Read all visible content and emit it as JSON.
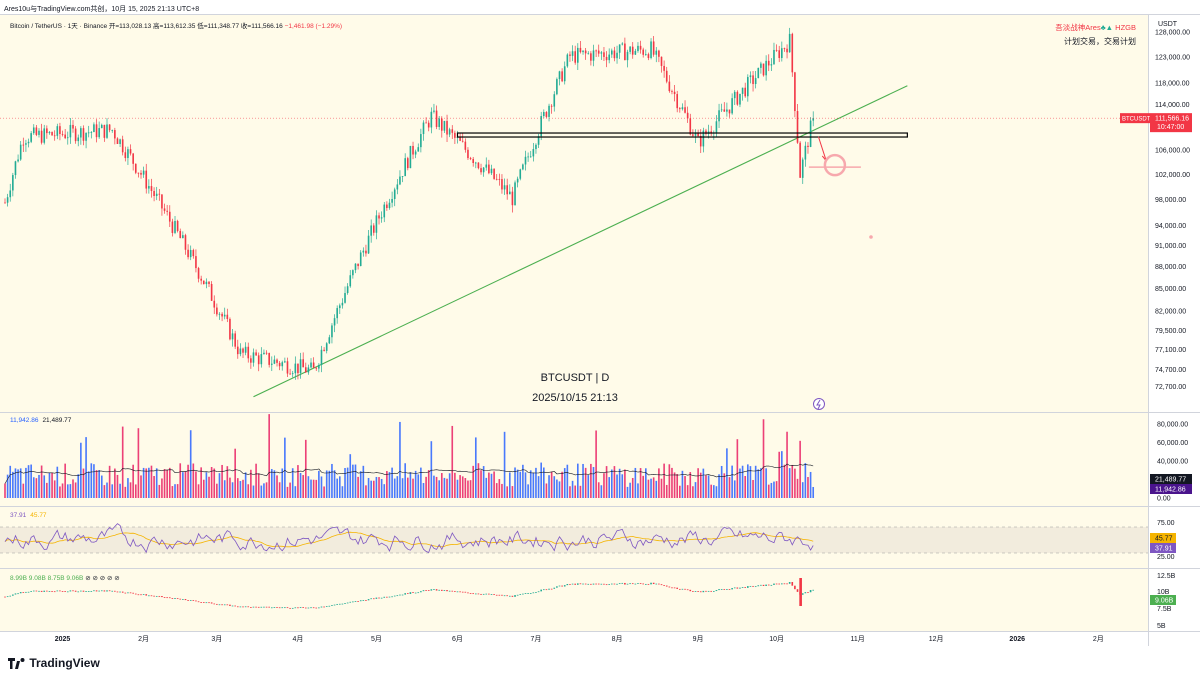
{
  "header": {
    "top_line": "Ares10u与TradingView.com共创，10月 15, 2025 21:13 UTC+8",
    "symbol_line": "Bitcoin / TetherUS · 1天 · Binance",
    "open": "开=113,028.13",
    "high": "高=113,612.35",
    "low": "低=111,348.77",
    "close": "收=111,566.16",
    "change": "−1,461.98 (−1.29%)"
  },
  "author": {
    "name": "吾淡战神Ares",
    "tag": "HZGB",
    "motto": "计划交易，交易计划"
  },
  "watermark": {
    "symbol": "BTCUSDT | D",
    "datetime": "2025/10/15 21:13"
  },
  "price_axis": {
    "currency": "USDT",
    "ticks": [
      "128,000.00",
      "123,000.00",
      "118,000.00",
      "114,000.00",
      "110,000.00",
      "106,000.00",
      "102,000.00",
      "98,000.00",
      "94,000.00",
      "91,000.00",
      "88,000.00",
      "85,000.00",
      "82,000.00",
      "79,500.00",
      "77,100.00",
      "74,700.00",
      "72,700.00"
    ],
    "last_label": "BTCUSDT",
    "last_price": "111,566.16",
    "countdown": "10:47:00"
  },
  "volume": {
    "legend_a": "11,942.86",
    "legend_b": "21,489.77",
    "ticks": [
      "80,000.00",
      "60,000.00",
      "40,000.00",
      "20,000.00",
      "0.00"
    ],
    "badge_ma": "21,489.77",
    "badge_vol": "11,942.86"
  },
  "rsi": {
    "legend_a": "37.91",
    "legend_b": "45.77",
    "ticks": [
      "75.00",
      "25.00"
    ],
    "badge_ma": "45.77",
    "badge_rsi": "37.91"
  },
  "mcap": {
    "legend": "8.99B  9.08B  8.75B  9.06B",
    "legend_icons": "⊘  ⊘  ⊘  ⊘  ⊘",
    "ticks": [
      "12.5B",
      "10B",
      "7.5B",
      "5B"
    ],
    "badge": "9.06B"
  },
  "time_axis": [
    "2025",
    "2月",
    "3月",
    "4月",
    "5月",
    "6月",
    "7月",
    "8月",
    "9月",
    "10月",
    "11月",
    "12月",
    "2026",
    "2月"
  ],
  "brand": "TradingView",
  "colors": {
    "up": "#22ab94",
    "down": "#f23645",
    "panel_bg": "#fffbe9",
    "trendline": "#4caf50",
    "volume_blue": "#2962ff",
    "volume_red": "#e91e63",
    "rsi_line": "#7e57c2",
    "rsi_ma": "#f5b400"
  },
  "chart_data": {
    "type": "candlestick",
    "title": "Bitcoin / TetherUS · 1天 · Binance",
    "timeframe": "1D",
    "x_range": [
      "2024-12-10",
      "2026-02-20"
    ],
    "y_range": [
      70000,
      130000
    ],
    "monthly_closes": {
      "2024-12": 93500,
      "2025-01": 102400,
      "2025-02": 84300,
      "2025-03": 82500,
      "2025-04": 94200,
      "2025-05": 104600,
      "2025-06": 107100,
      "2025-07": 115700,
      "2025-08": 108200,
      "2025-09": 114000,
      "2025-10-15": 111566
    },
    "key_points": [
      {
        "date": "2024-12-17",
        "price": 108300
      },
      {
        "date": "2025-01-20",
        "price": 109500
      },
      {
        "date": "2025-03-10",
        "price": 76600
      },
      {
        "date": "2025-04-07",
        "price": 74500
      },
      {
        "date": "2025-05-22",
        "price": 111900
      },
      {
        "date": "2025-06-22",
        "price": 98200
      },
      {
        "date": "2025-07-14",
        "price": 123200
      },
      {
        "date": "2025-08-14",
        "price": 124500
      },
      {
        "date": "2025-09-01",
        "price": 107300
      },
      {
        "date": "2025-10-06",
        "price": 126200
      },
      {
        "date": "2025-10-10",
        "price": 102000
      },
      {
        "date": "2025-10-15",
        "price": 111566
      }
    ],
    "annotations": {
      "support_zone": {
        "from": "2025-06-01",
        "to": "2025-11-20",
        "price": 108600
      },
      "trendline": {
        "from": {
          "date": "2025-03-15",
          "price": 71500
        },
        "to": {
          "date": "2025-11-20",
          "price": 117500
        }
      },
      "projection_arrow": {
        "from": {
          "date": "2025-10-17",
          "price": 108300
        },
        "to": {
          "date": "2025-10-20",
          "price": 104200
        }
      },
      "target_circle": {
        "date": "2025-10-21",
        "price": 103500
      }
    },
    "indicators": {
      "volume": {
        "last": 11942.86,
        "ma": 21489.77,
        "ylim": [
          0,
          90000
        ]
      },
      "rsi": {
        "value": 37.91,
        "ma": 45.77,
        "bands": [
          25,
          75
        ]
      },
      "market_cap_b": {
        "values": [
          8.99,
          9.08,
          8.75,
          9.06
        ],
        "ticks": [
          12.5,
          10,
          7.5,
          5
        ]
      }
    }
  }
}
